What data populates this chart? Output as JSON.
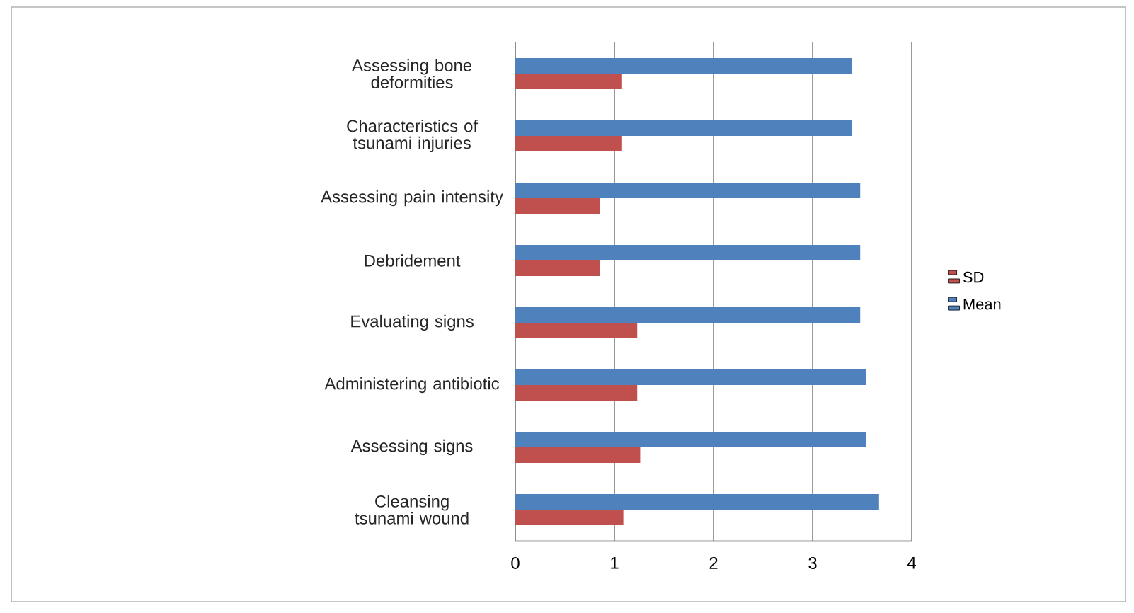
{
  "chart_data": {
    "type": "bar",
    "orientation": "horizontal",
    "categories": [
      "Assessing bone deformities",
      "Characteristics of tsunami injuries",
      "Assessing pain intensity",
      "Debridement",
      "Evaluating signs",
      "Administering antibiotic",
      "Assessing signs",
      "Cleansing  tsunami wound"
    ],
    "series": [
      {
        "name": "SD",
        "color": "#c0504d",
        "values": [
          1.07,
          1.07,
          0.85,
          0.85,
          1.23,
          1.23,
          1.26,
          1.09
        ]
      },
      {
        "name": "Mean",
        "color": "#4f81bd",
        "values": [
          3.4,
          3.4,
          3.48,
          3.48,
          3.48,
          3.54,
          3.54,
          3.67
        ]
      }
    ],
    "xlim": [
      0,
      4
    ],
    "xticks": [
      0,
      1,
      2,
      3,
      4
    ],
    "grid": "x",
    "legend": "right"
  }
}
